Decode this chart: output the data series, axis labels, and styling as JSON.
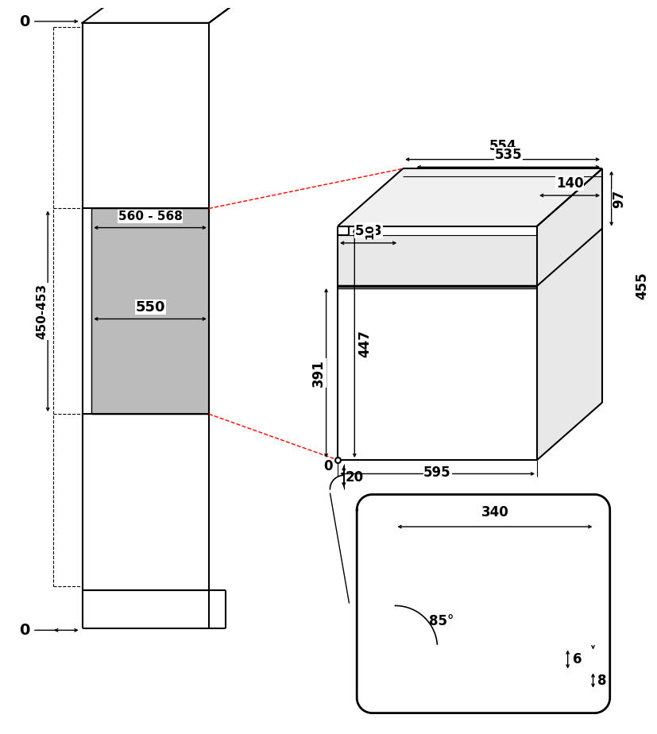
{
  "bg": "#ffffff",
  "lc": "#000000",
  "red": "#ff0000",
  "gray": "#bbbbbb",
  "lw_main": 1.5,
  "lw_dim": 1.0,
  "lw_dash": 0.8,
  "fs": 12,
  "dims": {
    "560_568": "560 - 568",
    "550": "550",
    "450_453": "450-453",
    "554": "554",
    "535": "535",
    "553": "553",
    "140": "140",
    "10": "10",
    "97": "97",
    "391": "391",
    "447": "447",
    "455": "455",
    "595": "595",
    "20": "20",
    "340": "340",
    "85deg": "85°",
    "6": "6",
    "8": "8"
  }
}
